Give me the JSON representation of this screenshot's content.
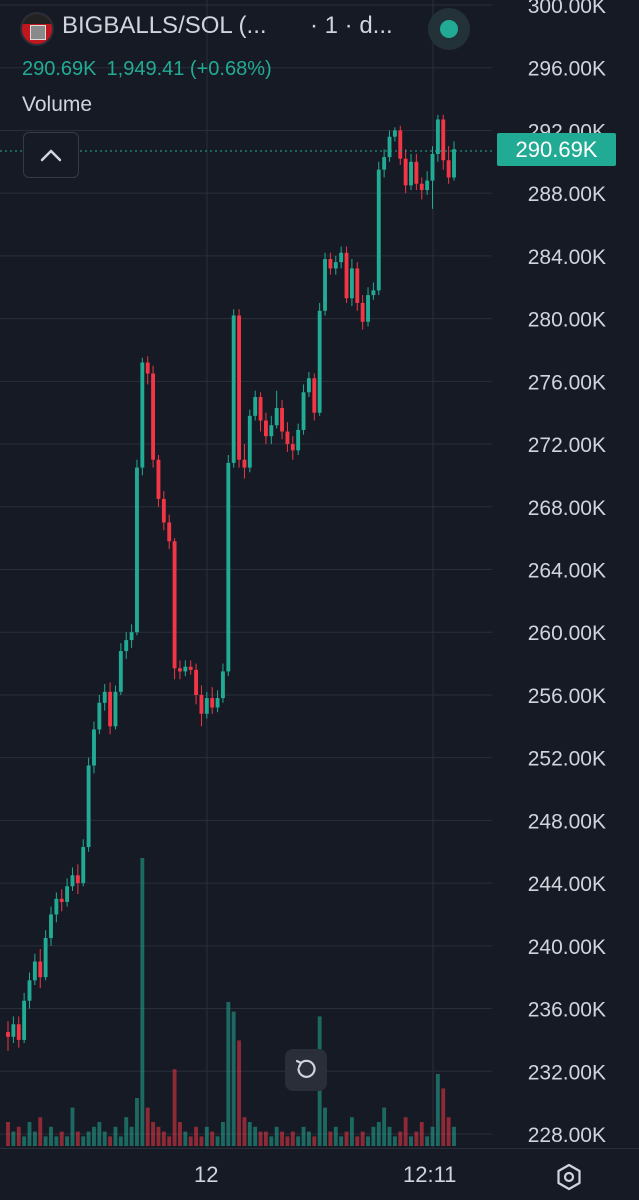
{
  "header": {
    "symbol_title": "BIGBALLS/SOL (...",
    "interval": "· 1 · d...",
    "last_price": "290.69K",
    "change": "1,949.41 (+0.68%)",
    "volume_label": "Volume"
  },
  "price_badge": "290.69K",
  "colors": {
    "up": "#22ab94",
    "down": "#f23645",
    "background": "#161a25",
    "grid": "#2a2e39",
    "text": "#d1d4dc"
  },
  "icons": {
    "token_logo": "token-logo-icon",
    "live_indicator": "live-indicator-icon",
    "collapse": "chevron-up-icon",
    "reset": "reset-rotate-icon",
    "settings": "hexagon-settings-icon"
  },
  "time_axis": {
    "labels": [
      "12",
      "12:11"
    ]
  },
  "chart_data": {
    "type": "candlestick",
    "y_unit": "K",
    "ylim": [
      227,
      300
    ],
    "y_ticks": [
      300,
      296,
      292,
      288,
      284,
      280,
      276,
      272,
      268,
      264,
      260,
      256,
      252,
      248,
      244,
      240,
      236,
      232,
      228
    ],
    "y_tick_labels": [
      "300.00K",
      "296.00K",
      "292.00K",
      "288.00K",
      "284.00K",
      "280.00K",
      "276.00K",
      "272.00K",
      "268.00K",
      "264.00K",
      "260.00K",
      "256.00K",
      "252.00K",
      "248.00K",
      "244.00K",
      "240.00K",
      "236.00K",
      "232.00K",
      "228.00K"
    ],
    "last_price": 290.69,
    "grid": true,
    "candles": [
      [
        234.5,
        234.2,
        235.2,
        233.3
      ],
      [
        234.2,
        235.0,
        235.5,
        233.8
      ],
      [
        235.0,
        234.0,
        235.5,
        233.5
      ],
      [
        234.0,
        236.5,
        237.0,
        233.8
      ],
      [
        236.5,
        237.8,
        238.3,
        236.0
      ],
      [
        237.8,
        239.0,
        239.5,
        237.5
      ],
      [
        239.0,
        238.0,
        239.8,
        237.3
      ],
      [
        238.0,
        240.5,
        241.0,
        237.8
      ],
      [
        240.5,
        242.0,
        242.5,
        240.0
      ],
      [
        242.0,
        243.0,
        243.4,
        241.5
      ],
      [
        243.0,
        242.8,
        243.6,
        242.2
      ],
      [
        242.8,
        243.8,
        244.3,
        242.5
      ],
      [
        243.8,
        244.5,
        245.0,
        243.5
      ],
      [
        244.5,
        244.0,
        245.2,
        243.3
      ],
      [
        244.0,
        246.3,
        246.8,
        243.8
      ],
      [
        246.3,
        251.5,
        252.0,
        246.0
      ],
      [
        251.5,
        253.8,
        254.3,
        251.0
      ],
      [
        253.8,
        255.5,
        256.0,
        253.5
      ],
      [
        255.5,
        256.2,
        256.7,
        255.0
      ],
      [
        256.2,
        254.0,
        256.8,
        253.5
      ],
      [
        254.0,
        256.2,
        256.6,
        253.8
      ],
      [
        256.2,
        258.8,
        259.3,
        256.0
      ],
      [
        258.8,
        259.5,
        260.0,
        258.3
      ],
      [
        259.5,
        260.0,
        260.5,
        259.0
      ],
      [
        260.0,
        270.5,
        271.0,
        259.8
      ],
      [
        270.5,
        277.2,
        277.5,
        270.0
      ],
      [
        277.2,
        276.5,
        277.6,
        275.8
      ],
      [
        276.5,
        271.0,
        277.0,
        270.5
      ],
      [
        271.0,
        268.5,
        271.3,
        268.0
      ],
      [
        268.5,
        267.0,
        269.0,
        266.5
      ],
      [
        267.0,
        265.8,
        267.5,
        265.3
      ],
      [
        265.8,
        257.7,
        266.0,
        257.0
      ],
      [
        257.7,
        257.5,
        258.2,
        257.0
      ],
      [
        257.5,
        257.8,
        258.2,
        257.2
      ],
      [
        257.8,
        257.6,
        258.2,
        257.3
      ],
      [
        257.6,
        256.0,
        258.0,
        255.4
      ],
      [
        256.0,
        254.8,
        256.6,
        254.0
      ],
      [
        254.8,
        255.8,
        256.2,
        254.5
      ],
      [
        255.8,
        255.2,
        256.5,
        254.8
      ],
      [
        255.2,
        255.8,
        256.3,
        254.9
      ],
      [
        255.8,
        257.5,
        258.0,
        255.5
      ],
      [
        257.5,
        270.8,
        271.3,
        257.2
      ],
      [
        270.8,
        280.2,
        280.6,
        270.5
      ],
      [
        280.2,
        271.0,
        280.6,
        270.5
      ],
      [
        271.0,
        270.5,
        272.0,
        269.8
      ],
      [
        270.5,
        273.8,
        274.2,
        270.2
      ],
      [
        273.8,
        275.0,
        275.4,
        273.5
      ],
      [
        275.0,
        273.5,
        275.3,
        272.8
      ],
      [
        273.5,
        272.5,
        274.0,
        272.0
      ],
      [
        272.5,
        273.2,
        273.8,
        272.0
      ],
      [
        273.2,
        274.3,
        275.4,
        273.0
      ],
      [
        274.3,
        272.8,
        274.8,
        272.3
      ],
      [
        272.8,
        272.0,
        273.4,
        271.5
      ],
      [
        272.0,
        271.6,
        272.5,
        271.0
      ],
      [
        271.6,
        272.9,
        273.3,
        271.3
      ],
      [
        272.9,
        275.3,
        275.8,
        272.6
      ],
      [
        275.3,
        276.2,
        276.6,
        275.0
      ],
      [
        276.2,
        274.0,
        276.5,
        273.5
      ],
      [
        274.0,
        280.5,
        281.0,
        273.8
      ],
      [
        280.5,
        283.8,
        284.2,
        280.2
      ],
      [
        283.8,
        283.2,
        284.2,
        282.8
      ],
      [
        283.2,
        283.6,
        284.0,
        282.8
      ],
      [
        283.6,
        284.2,
        284.6,
        283.2
      ],
      [
        284.2,
        281.3,
        284.6,
        281.0
      ],
      [
        281.3,
        283.2,
        283.8,
        280.8
      ],
      [
        283.2,
        281.0,
        283.6,
        280.5
      ],
      [
        281.0,
        279.8,
        281.5,
        279.3
      ],
      [
        279.8,
        281.5,
        282.0,
        279.5
      ],
      [
        281.5,
        281.8,
        282.3,
        281.2
      ],
      [
        281.8,
        289.5,
        290.0,
        281.5
      ],
      [
        289.5,
        290.3,
        290.8,
        289.0
      ],
      [
        290.3,
        291.6,
        292.0,
        290.0
      ],
      [
        291.6,
        292.0,
        292.2,
        291.3
      ],
      [
        292.0,
        290.2,
        292.3,
        289.8
      ],
      [
        290.2,
        288.5,
        290.8,
        288.0
      ],
      [
        288.5,
        290.0,
        290.5,
        288.2
      ],
      [
        290.0,
        288.6,
        290.5,
        288.2
      ],
      [
        288.6,
        288.2,
        289.0,
        287.6
      ],
      [
        288.2,
        288.8,
        289.4,
        287.9
      ],
      [
        288.8,
        290.5,
        291.0,
        287.0
      ],
      [
        290.5,
        292.7,
        293.0,
        290.0
      ],
      [
        292.7,
        290.1,
        293.0,
        289.5
      ],
      [
        290.1,
        289.0,
        291.0,
        288.6
      ],
      [
        289.0,
        290.8,
        291.3,
        288.8
      ]
    ],
    "volume": [
      5,
      3,
      4,
      2,
      5,
      3,
      6,
      2,
      4,
      2,
      3,
      2,
      8,
      3,
      2,
      3,
      4,
      5,
      3,
      2,
      4,
      2,
      6,
      4,
      10,
      60,
      8,
      5,
      4,
      3,
      2,
      16,
      5,
      3,
      2,
      4,
      2,
      4,
      3,
      2,
      5,
      30,
      28,
      22,
      6,
      5,
      4,
      3,
      3,
      2,
      4,
      3,
      2,
      3,
      2,
      4,
      3,
      2,
      27,
      8,
      3,
      4,
      2,
      3,
      6,
      2,
      3,
      2,
      4,
      5,
      8,
      4,
      2,
      3,
      6,
      2,
      3,
      5,
      2,
      4,
      15,
      12,
      6,
      4
    ]
  }
}
